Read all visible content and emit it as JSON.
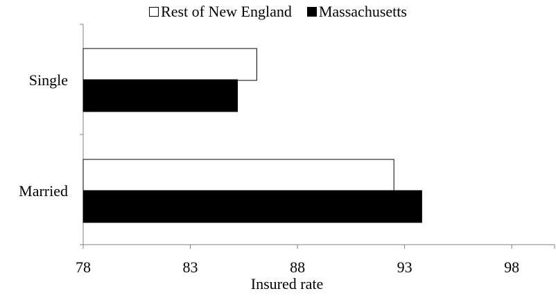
{
  "chart_data": {
    "type": "bar",
    "orientation": "horizontal",
    "categories": [
      "Single",
      "Married"
    ],
    "series": [
      {
        "name": "Rest of New England",
        "values": [
          86.1,
          92.5
        ],
        "fill": "#ffffff"
      },
      {
        "name": "Massachusetts",
        "values": [
          85.2,
          93.8
        ],
        "fill": "#000000"
      }
    ],
    "xlabel": "Insured rate",
    "ylabel": "",
    "xlim": [
      78,
      100
    ],
    "xticks": [
      78,
      83,
      88,
      93,
      98
    ],
    "grid": false,
    "legend_position": "top"
  }
}
